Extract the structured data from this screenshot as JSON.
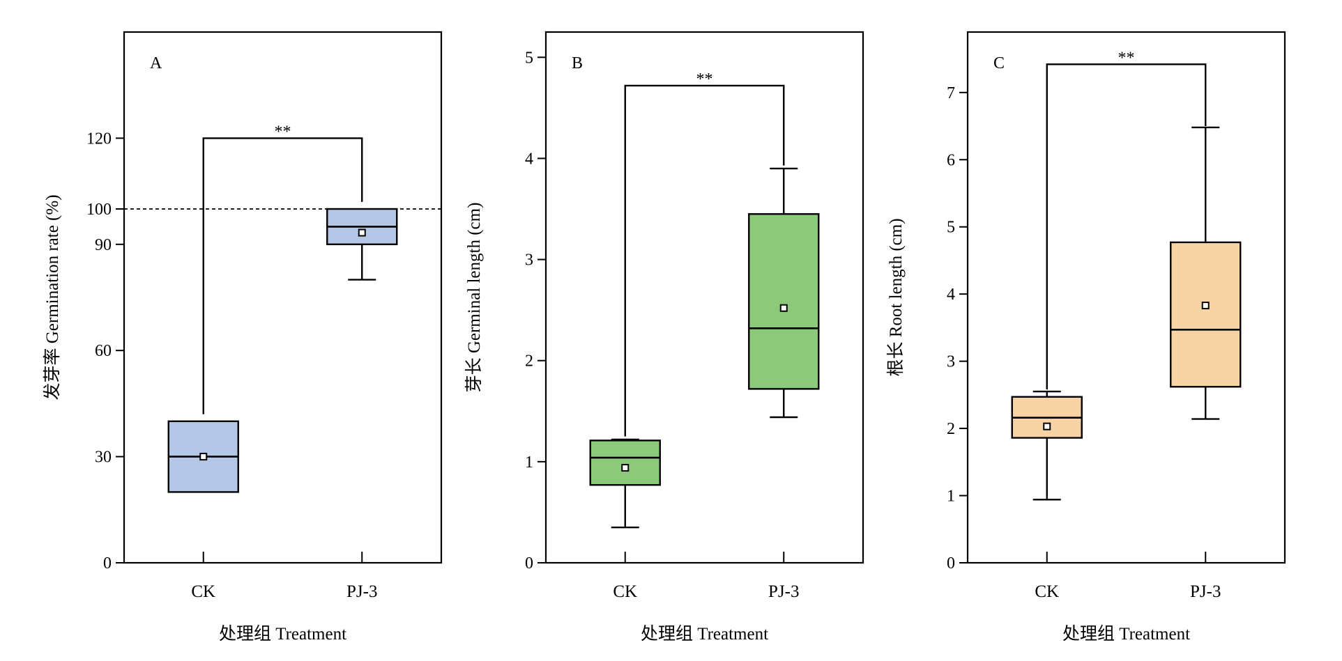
{
  "chart_data": [
    {
      "type": "box",
      "panel_label": "A",
      "xlabel": "处理组 Treatment",
      "ylabel": "发芽率 Germination rate (%)",
      "ylim": [
        0,
        150
      ],
      "yticks": [
        0,
        30,
        60,
        90,
        100,
        120
      ],
      "categories": [
        "CK",
        "PJ-3"
      ],
      "color": "#b4c7e7",
      "boxes": [
        {
          "category": "CK",
          "whisker_low": 20,
          "q1": 20,
          "median": 30,
          "q3": 40,
          "whisker_high": 40,
          "mean": 30
        },
        {
          "category": "PJ-3",
          "whisker_low": 80,
          "q1": 90,
          "median": 95,
          "q3": 100,
          "whisker_high": 100,
          "mean": 93.3
        }
      ],
      "reference_line": {
        "y": 100,
        "style": "dashed"
      },
      "significance": {
        "label": "**",
        "left_y": 42,
        "right_y": 102,
        "top_y": 120
      }
    },
    {
      "type": "box",
      "panel_label": "B",
      "xlabel": "处理组 Treatment",
      "ylabel": "芽长 Germinal length (cm)",
      "ylim": [
        0,
        5.25
      ],
      "yticks": [
        0,
        1,
        2,
        3,
        4,
        5
      ],
      "categories": [
        "CK",
        "PJ-3"
      ],
      "color": "#8dc97b",
      "boxes": [
        {
          "category": "CK",
          "whisker_low": 0.35,
          "q1": 0.77,
          "median": 1.04,
          "q3": 1.21,
          "whisker_high": 1.22,
          "mean": 0.94
        },
        {
          "category": "PJ-3",
          "whisker_low": 1.44,
          "q1": 1.72,
          "median": 2.32,
          "q3": 3.45,
          "whisker_high": 3.9,
          "mean": 2.52
        }
      ],
      "significance": {
        "label": "**",
        "left_y": 1.25,
        "right_y": 3.93,
        "top_y": 4.72
      }
    },
    {
      "type": "box",
      "panel_label": "C",
      "xlabel": "处理组 Treatment",
      "ylabel": "根长 Root length (cm)",
      "ylim": [
        0,
        7.9
      ],
      "yticks": [
        0,
        1,
        2,
        3,
        4,
        5,
        6,
        7
      ],
      "categories": [
        "CK",
        "PJ-3"
      ],
      "color": "#f7d3a6",
      "boxes": [
        {
          "category": "CK",
          "whisker_low": 0.94,
          "q1": 1.86,
          "median": 2.16,
          "q3": 2.47,
          "whisker_high": 2.55,
          "mean": 2.03
        },
        {
          "category": "PJ-3",
          "whisker_low": 2.14,
          "q1": 2.62,
          "median": 3.47,
          "q3": 4.77,
          "whisker_high": 6.48,
          "mean": 3.83
        }
      ],
      "significance": {
        "label": "**",
        "left_y": 2.58,
        "right_y": 6.5,
        "top_y": 7.42
      }
    }
  ]
}
